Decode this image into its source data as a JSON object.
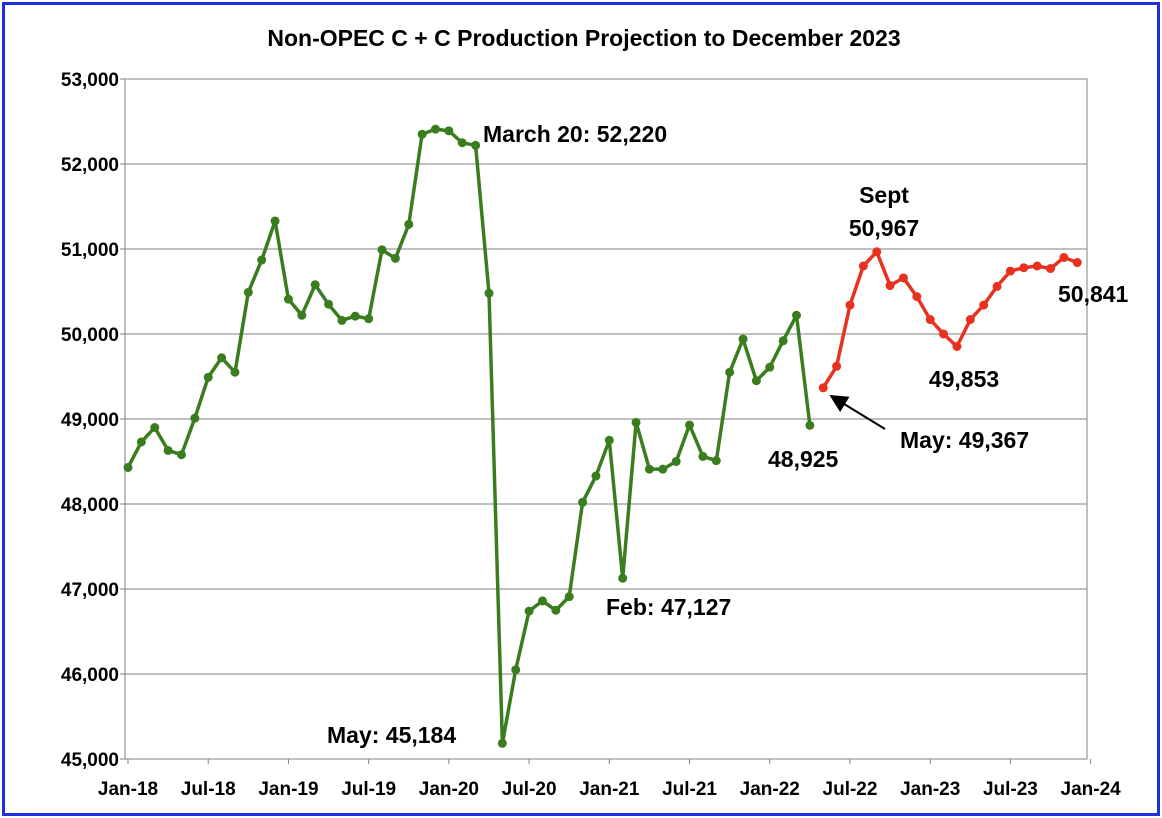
{
  "chart_data": {
    "type": "line",
    "title": "Non-OPEC C + C Production Projection to December 2023",
    "xlabel": "",
    "ylabel": "",
    "ylim": [
      45000,
      53000
    ],
    "grid": true,
    "legend": "none",
    "x_tick_labels": [
      "Jan-18",
      "Jul-18",
      "Jan-19",
      "Jul-19",
      "Jan-20",
      "Jul-20",
      "Jan-21",
      "Jul-21",
      "Jan-22",
      "Jul-22",
      "Jan-23",
      "Jul-23",
      "Jan-24"
    ],
    "y_tick_labels": [
      "45,000",
      "46,000",
      "47,000",
      "48,000",
      "49,000",
      "50,000",
      "51,000",
      "52,000",
      "53,000"
    ],
    "x_start": "Jan-18",
    "series": [
      {
        "color": "#3a7d1e",
        "start_index": 0,
        "values": [
          48430,
          48730,
          48900,
          48630,
          48580,
          49010,
          49490,
          49720,
          49550,
          50490,
          50870,
          51330,
          50410,
          50220,
          50580,
          50350,
          50160,
          50210,
          50180,
          50990,
          50890,
          51290,
          52350,
          52410,
          52390,
          52250,
          52220,
          50480,
          45184,
          46050,
          46740,
          46860,
          46750,
          46910,
          48020,
          48330,
          48750,
          47127,
          48960,
          48410,
          48410,
          48500,
          48930,
          48560,
          48510,
          49550,
          49940,
          49450,
          49610,
          49920,
          50220,
          48925
        ]
      },
      {
        "color": "#e8311f",
        "start_index": 52,
        "values": [
          49367,
          49620,
          50340,
          50800,
          50967,
          50570,
          50660,
          50440,
          50170,
          50000,
          49853,
          50170,
          50340,
          50560,
          50740,
          50780,
          50800,
          50770,
          50900,
          50841
        ]
      }
    ],
    "annotations": [
      {
        "text": "March 20: 52,220"
      },
      {
        "text": "Sept"
      },
      {
        "text": "50,967"
      },
      {
        "text": "50,841"
      },
      {
        "text": "49,853"
      },
      {
        "text": "May: 49,367"
      },
      {
        "text": "48,925"
      },
      {
        "text": "Feb: 47,127"
      },
      {
        "text": "May: 45,184"
      }
    ]
  }
}
